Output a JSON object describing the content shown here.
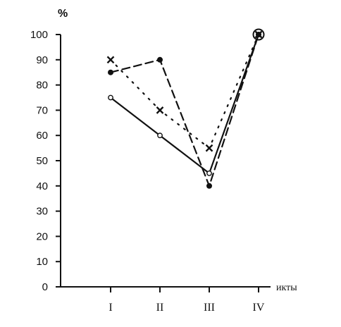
{
  "chart_data": {
    "type": "line",
    "ylabel": "%",
    "xlabel": "икты",
    "categories": [
      "I",
      "II",
      "III",
      "IV"
    ],
    "ylim": [
      0,
      100
    ],
    "yticks": [
      0,
      10,
      20,
      30,
      40,
      50,
      60,
      70,
      80,
      90,
      100
    ],
    "grid": false,
    "series": [
      {
        "values": [
          75,
          60,
          45,
          100
        ],
        "marker": "open-circle",
        "line": "solid"
      },
      {
        "values": [
          85,
          90,
          40,
          100
        ],
        "marker": "filled-circle",
        "line": "dashed"
      },
      {
        "values": [
          90,
          70,
          55,
          100
        ],
        "marker": "cross",
        "line": "dotted"
      }
    ]
  }
}
